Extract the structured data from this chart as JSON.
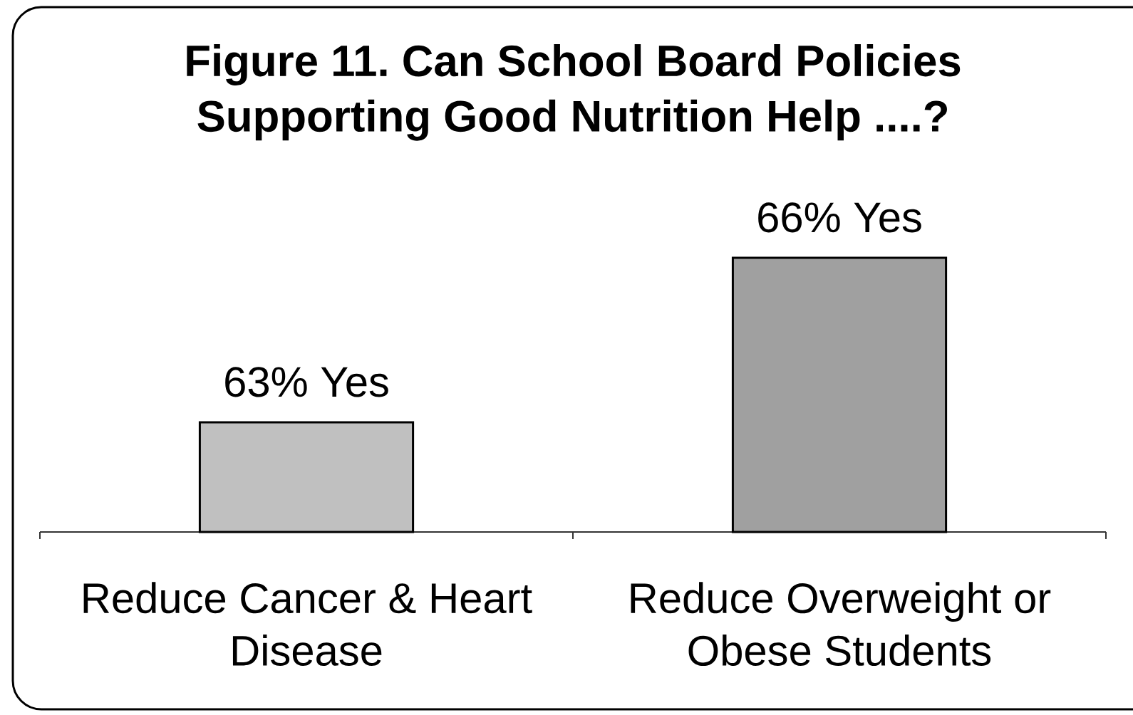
{
  "chart_data": {
    "type": "bar",
    "title": "Figure 11. Can School Board Policies Supporting Good Nutrition Help ....?",
    "categories": [
      "Reduce Cancer & Heart Disease",
      "Reduce Overweight or Obese Students"
    ],
    "values": [
      63,
      66
    ],
    "colors": [
      "#c0c0c0",
      "#a0a0a0"
    ],
    "value_labels": [
      "63% Yes",
      "66% Yes"
    ],
    "ylim": [
      61,
      66
    ]
  }
}
